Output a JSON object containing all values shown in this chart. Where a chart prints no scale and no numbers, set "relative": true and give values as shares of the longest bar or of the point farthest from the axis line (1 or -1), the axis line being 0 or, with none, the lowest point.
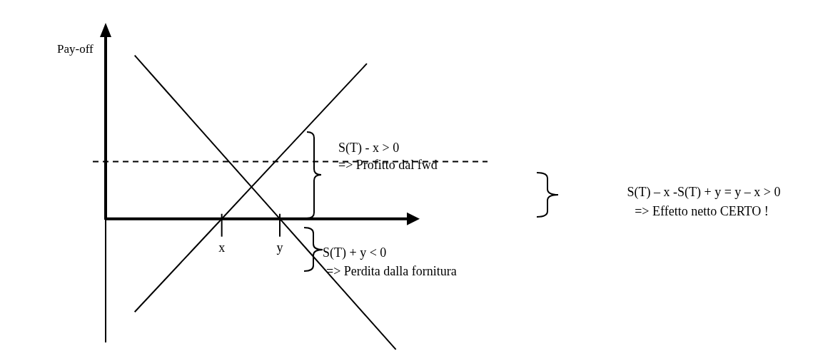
{
  "chart_data": {
    "type": "line",
    "relative": true,
    "ylabel": "Pay-off",
    "categories": [
      null,
      null,
      null,
      "x",
      null,
      "y",
      null,
      null,
      null,
      null
    ],
    "legend": false,
    "marker": "none",
    "series": [
      {
        "color": "#000000",
        "values": [
          -0.57,
          -0.38,
          -0.19,
          0,
          0.19,
          0.38,
          0.57,
          0.76,
          0.95,
          null
        ]
      },
      {
        "color": "#000000",
        "values": [
          1,
          0.8,
          0.6,
          0.4,
          0.2,
          0,
          -0.2,
          -0.4,
          -0.6,
          -0.8
        ]
      }
    ],
    "ref_lines": [
      {
        "axis": "y",
        "value": 0.35,
        "color": "#000000",
        "line_style": "dashed"
      }
    ],
    "annotations": [
      "S(T) - x > 0",
      "=> Profitto dal fwd",
      "S(T) + y < 0",
      "=> Perdita dalla fornitura",
      "S(T) – x -S(T) + y = y – x > 0",
      "=> Effetto netto CERTO !"
    ]
  }
}
